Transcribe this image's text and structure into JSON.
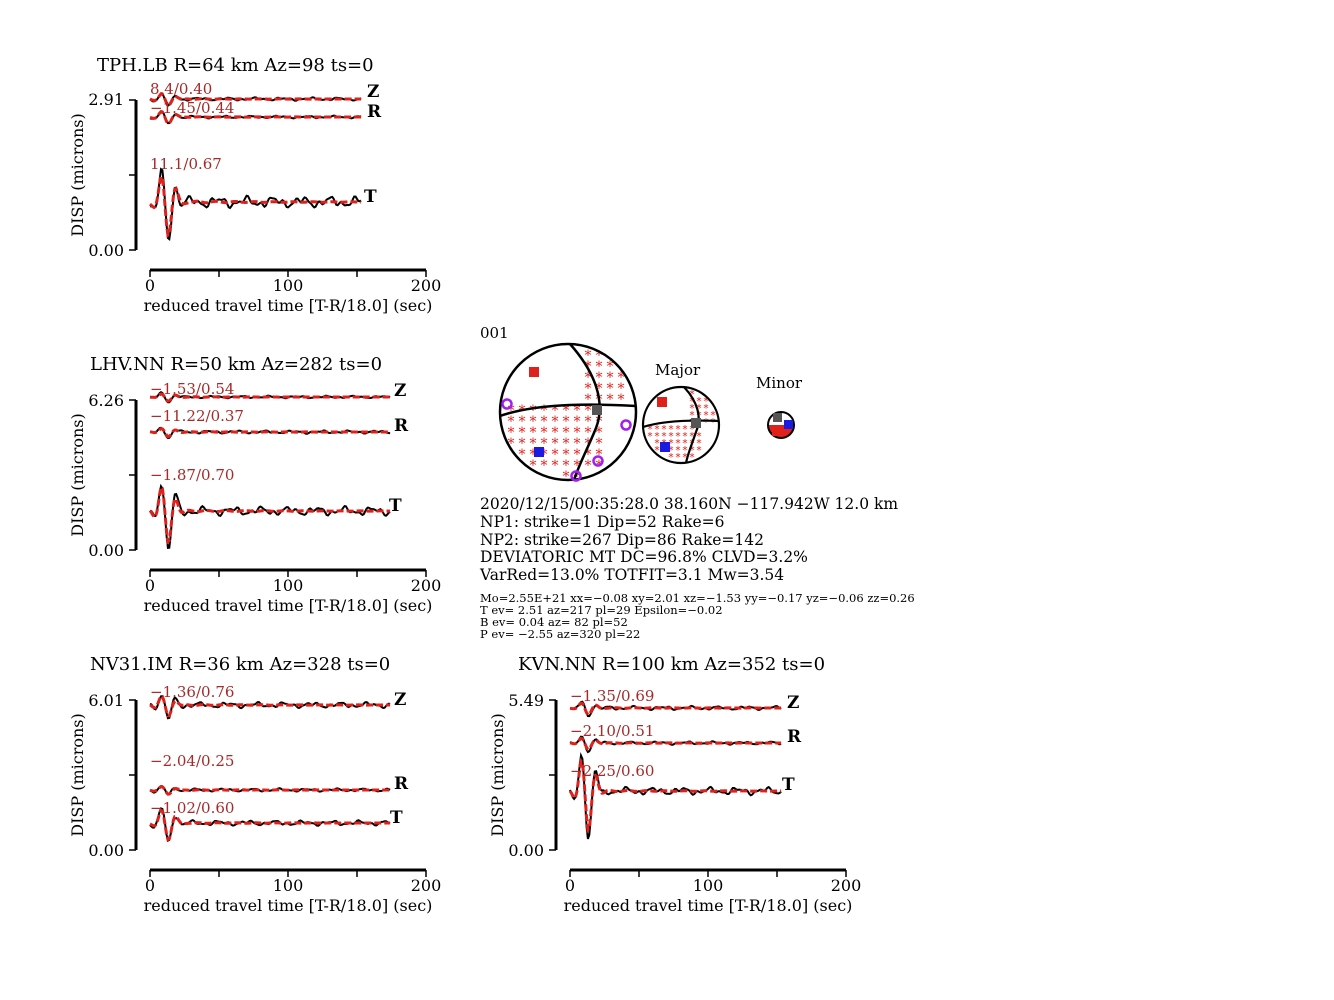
{
  "colors": {
    "observed": "#000000",
    "synthetic": "#e0201b",
    "annotation": "#a52a2a",
    "ball": "#e0201b",
    "t_axis": "#e0201b",
    "p_axis": "#1a1ae0",
    "b_axis": "#555555",
    "first_motion": "#a020f0"
  },
  "common": {
    "ylabel": "DISP (microns)",
    "xlabel": "reduced travel time [T-R/18.0] (sec)",
    "xticks": [
      "0",
      "100",
      "200"
    ],
    "xlim": [
      0,
      200
    ]
  },
  "chart_data": [
    {
      "type": "line",
      "title": "TPH.LB R=64 km Az=98 ts=0",
      "ylim": [
        0.0,
        2.91
      ],
      "yticks": [
        "2.91",
        "0.00"
      ],
      "series": [
        {
          "name": "Z",
          "fit": "8.4/0.40",
          "t_end": 153
        },
        {
          "name": "R",
          "fit": "−1.45/0.44",
          "t_end": 153
        },
        {
          "name": "T",
          "fit": "11.1/0.67",
          "t_end": 153
        }
      ]
    },
    {
      "type": "line",
      "title": "LHV.NN R=50 km Az=282 ts=0",
      "ylim": [
        0.0,
        6.26
      ],
      "yticks": [
        "6.26",
        "0.00"
      ],
      "series": [
        {
          "name": "Z",
          "fit": "−1.53/0.54",
          "t_end": 174
        },
        {
          "name": "R",
          "fit": "−11.22/0.37",
          "t_end": 174
        },
        {
          "name": "T",
          "fit": "−1.87/0.70",
          "t_end": 174
        }
      ]
    },
    {
      "type": "line",
      "title": "NV31.IM R=36 km Az=328 ts=0",
      "ylim": [
        0.0,
        6.01
      ],
      "yticks": [
        "6.01",
        "0.00"
      ],
      "series": [
        {
          "name": "Z",
          "fit": "−1.36/0.76",
          "t_end": 174
        },
        {
          "name": "R",
          "fit": "−2.04/0.25",
          "t_end": 174
        },
        {
          "name": "T",
          "fit": "−1.02/0.60",
          "t_end": 174
        }
      ]
    },
    {
      "type": "line",
      "title": "KVN.NN R=100 km Az=352 ts=0",
      "ylim": [
        0.0,
        5.49
      ],
      "yticks": [
        "5.49",
        "0.00"
      ],
      "series": [
        {
          "name": "Z",
          "fit": "−1.35/0.69",
          "t_end": 153
        },
        {
          "name": "R",
          "fit": "−2.10/0.51",
          "t_end": 153
        },
        {
          "name": "T",
          "fit": "−2.25/0.60",
          "t_end": 153
        }
      ]
    }
  ],
  "solution": {
    "id": "001",
    "major_label": "Major",
    "minor_label": "Minor",
    "lines": [
      "2020/12/15/00:35:28.0 38.160N −117.942W 12.0 km",
      "NP1: strike=1 Dip=52 Rake=6",
      "NP2: strike=267 Dip=86 Rake=142",
      "DEVIATORIC MT DC=96.8% CLVD=3.2%",
      "VarRed=13.0% TOTFIT=3.1 Mw=3.54"
    ],
    "small_lines": [
      "Mo=2.55E+21 xx=−0.08 xy=2.01 xz=−1.53 yy=−0.17 yz=−0.06 zz=0.26",
      "T ev=  2.51 az=217 pl=29 Epsilon=−0.02",
      "B ev=  0.04 az= 82 pl=52",
      "P ev= −2.55 az=320 pl=22"
    ]
  }
}
